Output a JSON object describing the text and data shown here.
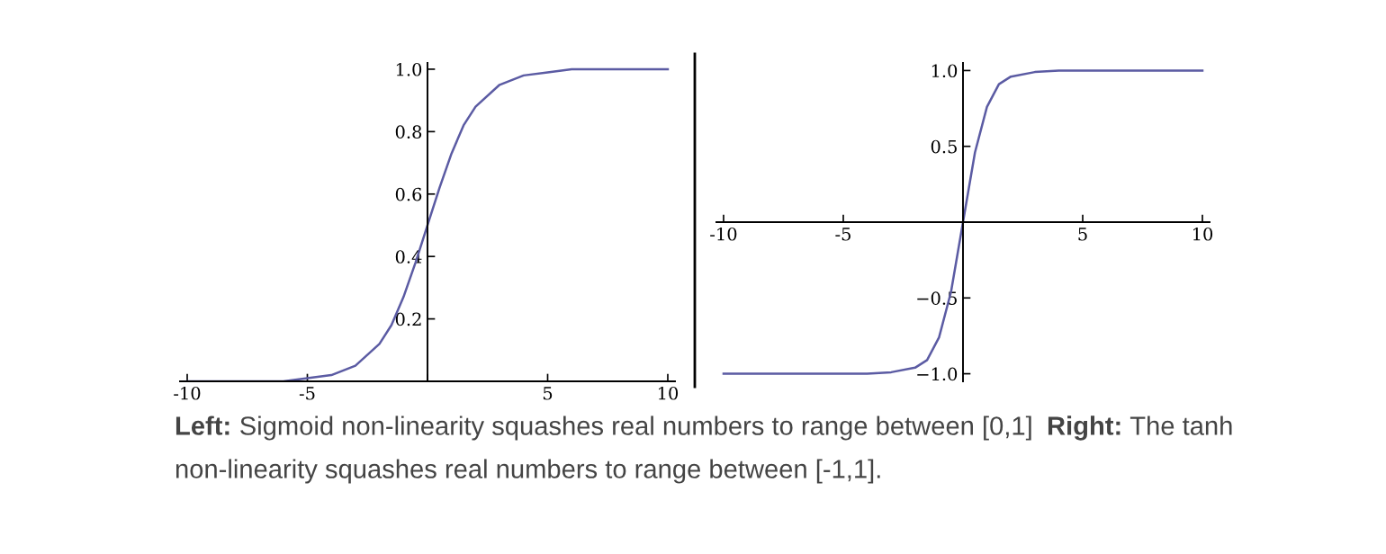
{
  "chart_data": [
    {
      "type": "line",
      "x": [
        -10,
        -8,
        -6,
        -5,
        -4,
        -3,
        -2,
        -1.5,
        -1,
        -0.5,
        0,
        0.5,
        1,
        1.5,
        2,
        3,
        4,
        5,
        6,
        8,
        10
      ],
      "series": [
        {
          "color": "#5b5ba3",
          "values": [
            0,
            0,
            0,
            0.01,
            0.02,
            0.05,
            0.12,
            0.18,
            0.27,
            0.38,
            0.5,
            0.62,
            0.73,
            0.82,
            0.88,
            0.95,
            0.98,
            0.99,
            1,
            1,
            1
          ]
        }
      ],
      "xlim": [
        -10.3,
        10.3
      ],
      "ylim": [
        0,
        1.02
      ],
      "xticks": [
        -10,
        -5,
        {
          "value": 0,
          "label": null
        },
        5,
        10
      ],
      "yticks": [
        0.2,
        0.4,
        0.6,
        0.8,
        {
          "value": 1,
          "label": "1.0"
        }
      ],
      "grid": false,
      "marker": "none",
      "line_style": "solid",
      "annotations": [
        "Left:",
        "Sigmoid non-linearity squashes real numbers to range between [0,1]"
      ]
    },
    {
      "type": "line",
      "x": [
        -10,
        -4,
        -3,
        -2,
        -1.5,
        -1,
        -0.5,
        0,
        0.5,
        1,
        1.5,
        2,
        3,
        4,
        10
      ],
      "series": [
        {
          "color": "#5b5ba3",
          "values": [
            -1,
            -1,
            -0.99,
            -0.96,
            -0.91,
            -0.76,
            -0.46,
            0,
            0.46,
            0.76,
            0.91,
            0.96,
            0.99,
            1,
            1
          ]
        }
      ],
      "xlim": [
        -10.3,
        10.3
      ],
      "ylim": [
        -1.05,
        1.05
      ],
      "xticks": [
        -10,
        -5,
        {
          "value": 0,
          "label": null
        },
        5,
        10
      ],
      "yticks": [
        {
          "value": -1,
          "label": "−1.0"
        },
        {
          "value": -0.5,
          "label": "−0.5"
        },
        {
          "value": 0.5,
          "label": "0.5"
        },
        {
          "value": 1,
          "label": "1.0"
        }
      ],
      "grid": false,
      "marker": "none",
      "line_style": "solid",
      "annotations": [
        "Right:",
        "The tanh non-linearity squashes real numbers to range between [-1,1]."
      ]
    }
  ]
}
